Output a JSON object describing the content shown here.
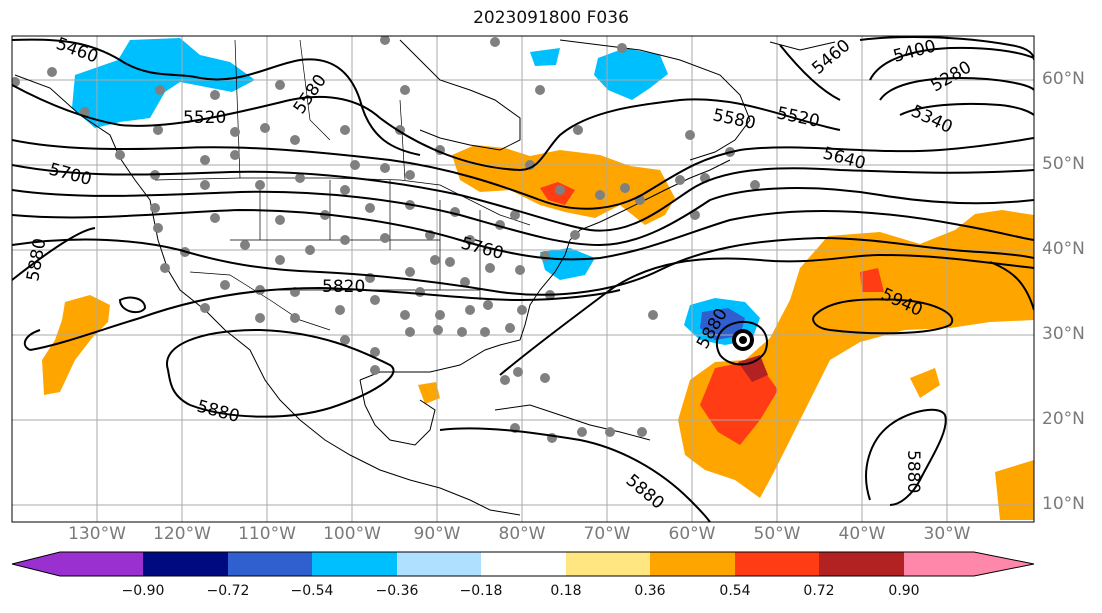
{
  "title": "2023091800 F036",
  "lat_labels": [
    "10°N",
    "20°N",
    "30°N",
    "40°N",
    "50°N",
    "60°N"
  ],
  "lon_labels": [
    "130°W",
    "120°W",
    "110°W",
    "100°W",
    "90°W",
    "80°W",
    "70°W",
    "60°W",
    "50°W",
    "40°W",
    "30°W"
  ],
  "contour_labels": [
    "5460",
    "5520",
    "5580",
    "5700",
    "5880",
    "5820",
    "5760",
    "5640",
    "5580",
    "5520",
    "5460",
    "5400",
    "5280",
    "5340",
    "5940",
    "5880",
    "5880",
    "5880",
    "5880"
  ],
  "colorbar": {
    "ticks": [
      "−0.90",
      "−0.72",
      "−0.54",
      "−0.36",
      "−0.18",
      "0.18",
      "0.36",
      "0.54",
      "0.72",
      "0.90"
    ],
    "colors": [
      "#9a30d0",
      "#000a80",
      "#3060d0",
      "#00bfff",
      "#b0e0ff",
      "#ffffff",
      "#ffe680",
      "#ffa500",
      "#ff3c14",
      "#b22222",
      "#ff88aa"
    ]
  },
  "fill_colors": {
    "light_blue": "#00bfff",
    "mid_blue": "#3060d0",
    "orange": "#ffa500",
    "red_orange": "#ff3c14",
    "dark_red": "#b22222",
    "station_gray": "#808080"
  },
  "storm_marker": "hurricane-center"
}
